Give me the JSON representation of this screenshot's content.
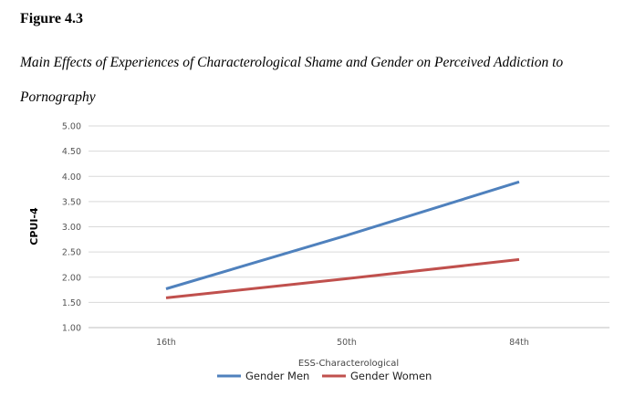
{
  "figure": {
    "label": "Figure 4.3",
    "title": "Main Effects of Experiences of Characterological Shame and Gender on Perceived Addiction to Pornography"
  },
  "chart_data": {
    "type": "line",
    "categories": [
      "16th",
      "50th",
      "84th"
    ],
    "series": [
      {
        "name": "Gender Men",
        "values": [
          1.77,
          2.83,
          3.89
        ],
        "color": "#4f81bd"
      },
      {
        "name": "Gender Women",
        "values": [
          1.59,
          1.97,
          2.35
        ],
        "color": "#c0504d"
      }
    ],
    "xlabel": "ESS-Characterological",
    "ylabel": "CPUI-4",
    "ylim": [
      1.0,
      5.0
    ],
    "yticks": [
      "1.00",
      "1.50",
      "2.00",
      "2.50",
      "3.00",
      "3.50",
      "4.00",
      "4.50",
      "5.00"
    ],
    "grid": true,
    "legend_position": "bottom"
  }
}
